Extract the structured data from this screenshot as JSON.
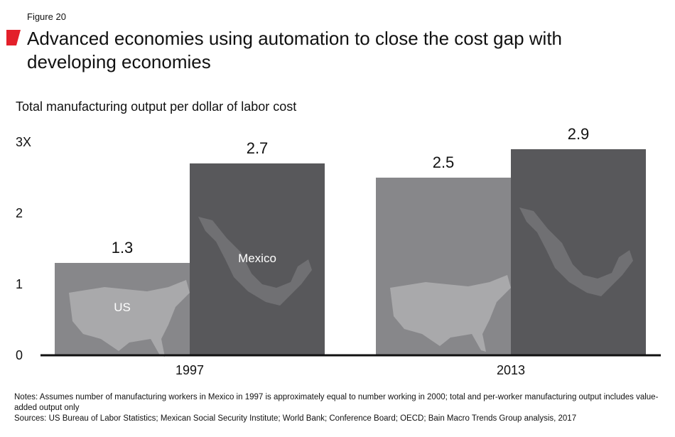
{
  "figure_label": "Figure 20",
  "title": "Advanced economies using automation to close the cost gap with developing economies",
  "subtitle": "Total manufacturing output per dollar of labor cost",
  "notes": "Notes: Assumes number of manufacturing workers in Mexico in 1997 is approximately equal to number working in 2000; total and per-worker manufacturing output includes value-added output only",
  "sources": "Sources: US Bureau of Labor Statistics; Mexican Social Security Institute; World Bank; Conference Board; OECD; Bain Macro Trends Group analysis, 2017",
  "colors": {
    "us": "#87878a",
    "mexico": "#58585b",
    "us_map": "#a9a9ab",
    "mexico_map": "#707073",
    "accent": "#e3202a"
  },
  "chart_data": {
    "type": "bar",
    "title": "Advanced economies using automation to close the cost gap with developing economies",
    "ylabel": "Total manufacturing output per dollar of labor cost",
    "categories": [
      "1997",
      "2013"
    ],
    "series": [
      {
        "name": "US",
        "values": [
          1.3,
          2.5
        ]
      },
      {
        "name": "Mexico",
        "values": [
          2.7,
          2.9
        ]
      }
    ],
    "value_labels": [
      [
        "1.3",
        "2.5"
      ],
      [
        "2.7",
        "2.9"
      ]
    ],
    "yticks": [
      "0",
      "1",
      "2",
      "3X"
    ],
    "ylim": [
      0,
      3
    ],
    "legend": "in-bar labels on 1997 bars",
    "bar_labels": [
      "US",
      "Mexico"
    ]
  }
}
